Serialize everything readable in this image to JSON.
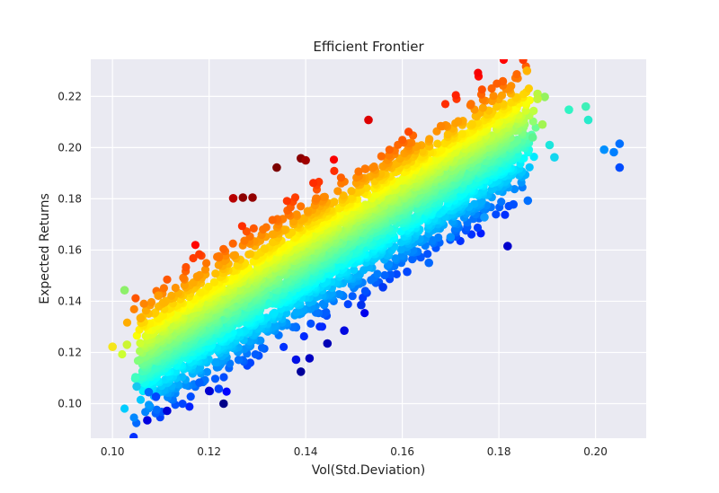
{
  "chart_data": {
    "type": "scatter",
    "title": "Efficient Frontier",
    "xlabel": "Vol(Std.Deviation)",
    "ylabel": "Expected Returns",
    "xlim": [
      0.0955,
      0.2105
    ],
    "ylim": [
      0.0865,
      0.2345
    ],
    "xticks": [
      "0.10",
      "0.12",
      "0.14",
      "0.16",
      "0.18",
      "0.20"
    ],
    "yticks": [
      "0.10",
      "0.12",
      "0.14",
      "0.16",
      "0.18",
      "0.20",
      "0.22"
    ],
    "grid": true,
    "colormap": "jet",
    "color_encodes": "sharpe ratio (colour only, no colorbar shown)",
    "style": {
      "background": "#eaeaf2",
      "grid_color": "#ffffff"
    },
    "points": [
      [
        0.1,
        0.1222
      ],
      [
        0.1025,
        0.1443
      ],
      [
        0.103,
        0.123
      ],
      [
        0.105,
        0.1067
      ],
      [
        0.1058,
        0.1334
      ],
      [
        0.1072,
        0.0935
      ],
      [
        0.1075,
        0.1045
      ],
      [
        0.109,
        0.1027
      ],
      [
        0.1095,
        0.1422
      ],
      [
        0.1113,
        0.0972
      ],
      [
        0.118,
        0.1082
      ],
      [
        0.12,
        0.105
      ],
      [
        0.122,
        0.1058
      ],
      [
        0.123,
        0.1
      ],
      [
        0.125,
        0.1802
      ],
      [
        0.127,
        0.1805
      ],
      [
        0.129,
        0.1805
      ],
      [
        0.134,
        0.1922
      ],
      [
        0.139,
        0.1958
      ],
      [
        0.14,
        0.195
      ],
      [
        0.139,
        0.1125
      ],
      [
        0.1408,
        0.1177
      ],
      [
        0.138,
        0.1172
      ],
      [
        0.1445,
        0.1235
      ],
      [
        0.148,
        0.1285
      ],
      [
        0.153,
        0.2108
      ],
      [
        0.1818,
        0.1615
      ],
      [
        0.1858,
        0.23
      ],
      [
        0.183,
        0.1778
      ],
      [
        0.186,
        0.1793
      ],
      [
        0.177,
        0.1728
      ],
      [
        0.188,
        0.221
      ],
      [
        0.1895,
        0.2198
      ],
      [
        0.1945,
        0.2148
      ],
      [
        0.198,
        0.216
      ],
      [
        0.1985,
        0.2108
      ],
      [
        0.1905,
        0.201
      ],
      [
        0.1915,
        0.1962
      ],
      [
        0.2018,
        0.1992
      ],
      [
        0.2038,
        0.1982
      ],
      [
        0.205,
        0.2015
      ],
      [
        0.205,
        0.1922
      ],
      [
        0.188,
        0.219
      ],
      [
        0.187,
        0.204
      ],
      [
        0.189,
        0.209
      ],
      [
        0.17,
        0.165
      ],
      [
        0.1655,
        0.155
      ],
      [
        0.161,
        0.1515
      ],
      [
        0.156,
        0.1455
      ],
      [
        0.1515,
        0.1385
      ]
    ],
    "point_colors": [
      "#f5e61b",
      "#8df06a",
      "#ccf533",
      "#17c9f0",
      "#ffb000",
      "#0000e0",
      "#006dff",
      "#0046ff",
      "#ff9a00",
      "#0000d6",
      "#0060ff",
      "#0000cf",
      "#0042ff",
      "#000088",
      "#b80000",
      "#8d0000",
      "#930000",
      "#7c0000",
      "#8a0000",
      "#a00000",
      "#00009a",
      "#0000c2",
      "#0010e6",
      "#0000b6",
      "#0008e0",
      "#dd0000",
      "#0000cc",
      "#ffb400",
      "#0050ff",
      "#0070ff",
      "#0e9cff",
      "#b8f740",
      "#94f25e",
      "#2ff5c4",
      "#3ef0b8",
      "#27ebcc",
      "#1ce6dd",
      "#12d6ef",
      "#0090ff",
      "#0080ff",
      "#0070ff",
      "#004cff",
      "#c0f53a",
      "#5ef590",
      "#a2f552",
      "#0090ff",
      "#0068ff",
      "#0048ff",
      "#0038f5",
      "#0030ee"
    ]
  }
}
